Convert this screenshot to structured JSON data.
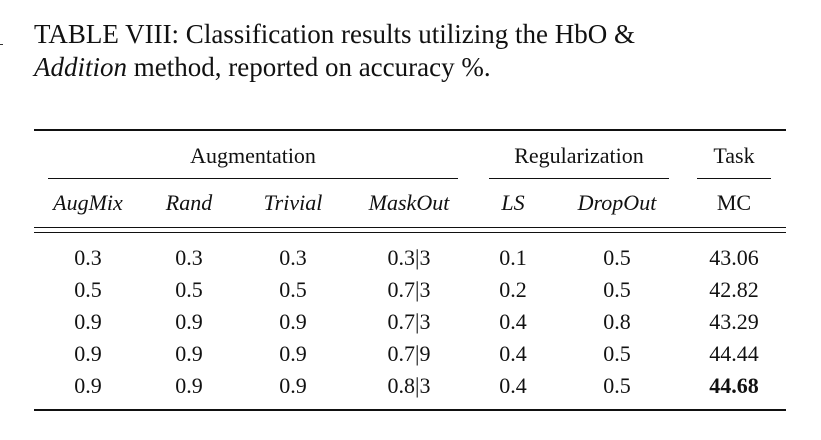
{
  "caption": {
    "label": "TABLE VIII: Classification results utilizing the HbO &",
    "italic_word": "Addition",
    "rest": " method, reported on accuracy %."
  },
  "groups": {
    "augmentation": "Augmentation",
    "regularization": "Regularization",
    "task": "Task"
  },
  "columns": [
    "AugMix",
    "Rand",
    "Trivial",
    "MaskOut",
    "LS",
    "DropOut",
    "MC"
  ],
  "rows": [
    [
      "0.3",
      "0.3",
      "0.3",
      "0.3|3",
      "0.1",
      "0.5",
      "43.06"
    ],
    [
      "0.5",
      "0.5",
      "0.5",
      "0.7|3",
      "0.2",
      "0.5",
      "42.82"
    ],
    [
      "0.9",
      "0.9",
      "0.9",
      "0.7|3",
      "0.4",
      "0.8",
      "43.29"
    ],
    [
      "0.9",
      "0.9",
      "0.9",
      "0.7|9",
      "0.4",
      "0.5",
      "44.44"
    ],
    [
      "0.9",
      "0.9",
      "0.9",
      "0.8|3",
      "0.4",
      "0.5",
      "44.68"
    ]
  ],
  "best_row_index": 4
}
